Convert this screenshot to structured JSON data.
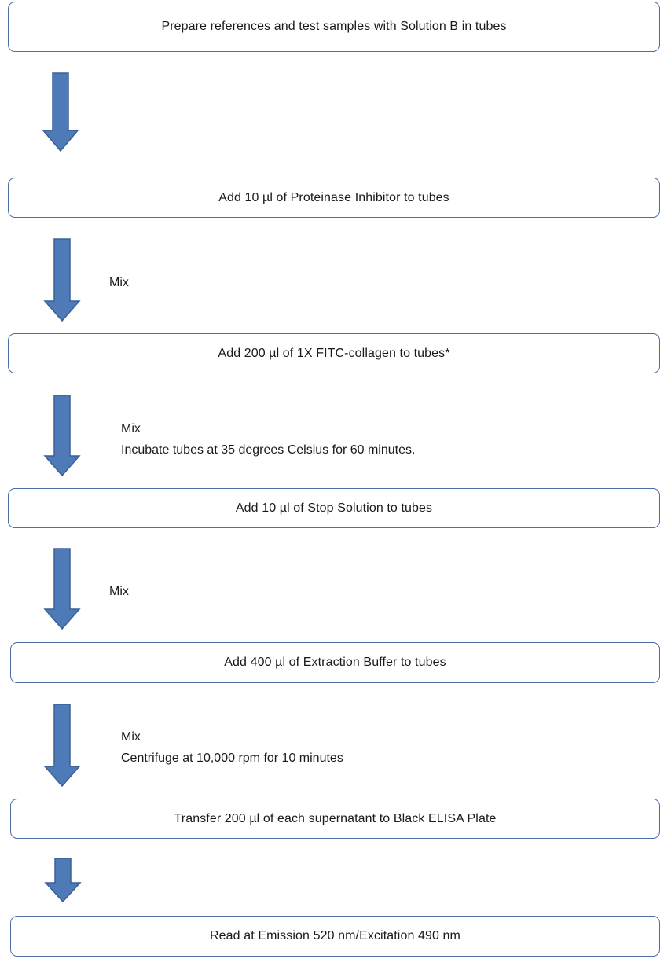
{
  "steps": [
    "Prepare references and test samples with Solution B in tubes",
    "Add 10 µl of Proteinase Inhibitor to tubes",
    "Add 200 µl of 1X FITC-collagen to tubes*",
    "Add 10 µl of Stop Solution to tubes",
    "Add 400 µl of Extraction Buffer to tubes",
    "Transfer 200 µl of each supernatant to Black ELISA Plate",
    "Read at Emission 520 nm/Excitation 490 nm"
  ],
  "notes": {
    "n1": [
      "Mix"
    ],
    "n2": [
      "Mix",
      "Incubate tubes at 35 degrees Celsius for 60 minutes."
    ],
    "n3": [
      "Mix"
    ],
    "n4": [
      "Mix",
      "Centrifuge at 10,000 rpm for 10 minutes"
    ]
  },
  "colors": {
    "arrow_fill": "#4f7ab8",
    "arrow_stroke": "#3b6096",
    "box_border": "#4a6fa0"
  }
}
